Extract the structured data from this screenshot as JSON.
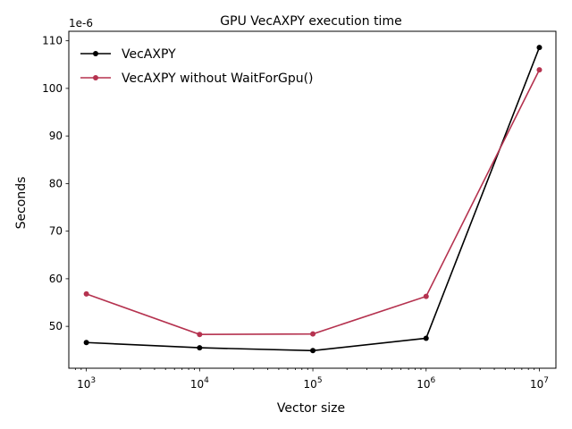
{
  "chart_data": {
    "type": "line",
    "title": "GPU VecAXPY execution time",
    "xlabel": "Vector size",
    "ylabel": "Seconds",
    "y_offset_label": "1e-6",
    "x_scale": "log",
    "x_tick_bases": [
      "10",
      "10",
      "10",
      "10",
      "10"
    ],
    "x_tick_exponents": [
      "3",
      "4",
      "5",
      "6",
      "7"
    ],
    "x_tick_values": [
      1000,
      10000,
      100000,
      1000000,
      10000000
    ],
    "xlim": [
      700,
      14000000
    ],
    "ylim": [
      41.2,
      112
    ],
    "y_ticks": [
      50,
      60,
      70,
      80,
      90,
      100,
      110
    ],
    "y_tick_labels": [
      "50",
      "60",
      "70",
      "80",
      "90",
      "100",
      "110"
    ],
    "x": [
      1000,
      10000,
      100000,
      1000000,
      10000000
    ],
    "series": [
      {
        "name": "VecAXPY",
        "color": "#000000",
        "values": [
          46.6,
          45.5,
          44.9,
          47.5,
          108.6
        ]
      },
      {
        "name": "VecAXPY without WaitForGpu()",
        "color": "#b5324f",
        "values": [
          56.8,
          48.3,
          48.4,
          56.3,
          103.9
        ]
      }
    ],
    "grid": false,
    "legend_position": "upper-left"
  }
}
